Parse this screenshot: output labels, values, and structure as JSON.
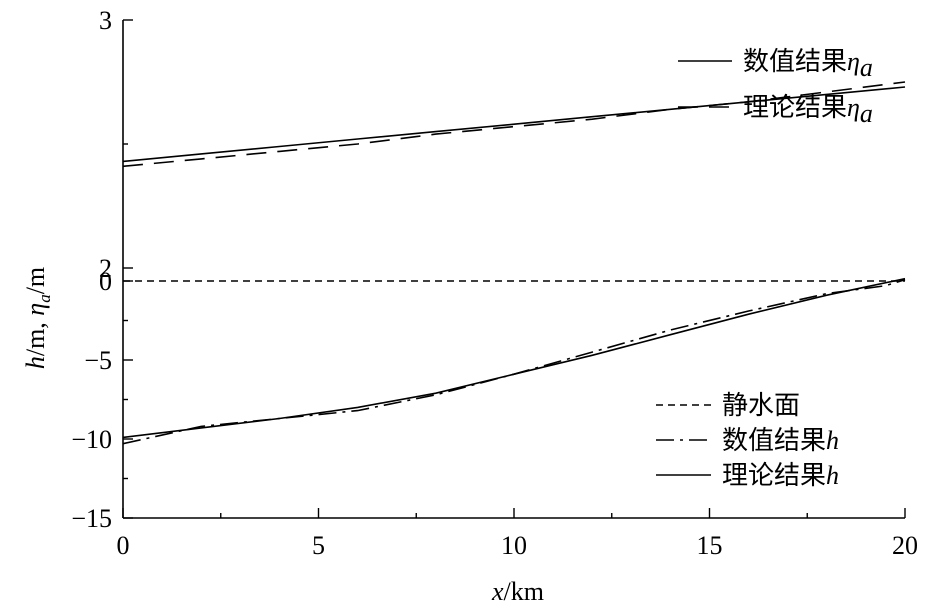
{
  "chart_data": {
    "type": "line",
    "xlabel_var": "x",
    "xlabel_unit": "/km",
    "ylabel_parts": [
      "h",
      "/m, ",
      "η",
      "a",
      "/m"
    ],
    "xlim": [
      0,
      20
    ],
    "ylim": [
      -15,
      3
    ],
    "x_ticks": [
      0,
      5,
      10,
      15,
      20
    ],
    "y_ticks": [
      {
        "value": -15,
        "label": "−15"
      },
      {
        "value": -10,
        "label": "−10"
      },
      {
        "value": -5,
        "label": "−5"
      },
      {
        "value": 0,
        "label": "0"
      },
      {
        "value": 2,
        "label": "2"
      },
      {
        "value": 3,
        "label": "3"
      }
    ],
    "legend_top": {
      "placement": "top-right",
      "entries": [
        {
          "series": "eta_numerical",
          "text": "数值结果",
          "symbol": "η",
          "sub": "a"
        },
        {
          "series": "eta_theoretical",
          "text": "理论结果",
          "symbol": "η",
          "sub": "a"
        }
      ]
    },
    "legend_bottom": {
      "placement": "bottom-right",
      "entries": [
        {
          "series": "still_water",
          "text": "静水面",
          "symbol": ""
        },
        {
          "series": "h_numerical",
          "text": "数值结果",
          "symbol": "h"
        },
        {
          "series": "h_theoretical",
          "text": "理论结果",
          "symbol": "h"
        }
      ]
    },
    "series": [
      {
        "key": "eta_numerical",
        "style": "solid",
        "x": [
          0,
          2,
          4,
          6,
          8,
          10,
          12,
          14,
          16,
          18,
          20
        ],
        "y": [
          2.43,
          2.46,
          2.49,
          2.52,
          2.55,
          2.58,
          2.61,
          2.64,
          2.67,
          2.7,
          2.73
        ]
      },
      {
        "key": "eta_theoretical",
        "style": "dashed",
        "x": [
          0,
          2,
          4,
          6,
          8,
          10,
          12,
          14,
          16,
          18,
          20
        ],
        "y": [
          2.41,
          2.44,
          2.47,
          2.5,
          2.54,
          2.57,
          2.6,
          2.64,
          2.67,
          2.71,
          2.75
        ]
      },
      {
        "key": "still_water",
        "style": "short-dash",
        "x": [
          0,
          20
        ],
        "y": [
          0,
          0
        ]
      },
      {
        "key": "h_numerical",
        "style": "dash-dot",
        "x": [
          0,
          2,
          4,
          6,
          8,
          10,
          12,
          14,
          16,
          18,
          19.5,
          20
        ],
        "y": [
          -10.3,
          -9.2,
          -8.7,
          -8.2,
          -7.2,
          -5.9,
          -4.5,
          -3.1,
          -1.9,
          -0.8,
          -0.3,
          0.2
        ]
      },
      {
        "key": "h_theoretical",
        "style": "solid",
        "x": [
          0,
          2,
          4,
          6,
          8,
          10,
          12,
          14,
          16,
          18,
          20
        ],
        "y": [
          -9.9,
          -9.3,
          -8.7,
          -8.0,
          -7.1,
          -5.9,
          -4.7,
          -3.4,
          -2.1,
          -0.9,
          0.35
        ]
      }
    ]
  }
}
